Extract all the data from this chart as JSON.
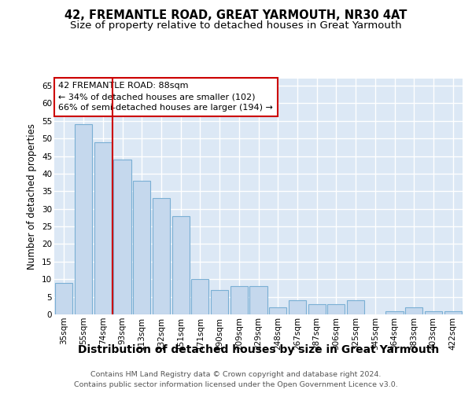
{
  "title": "42, FREMANTLE ROAD, GREAT YARMOUTH, NR30 4AT",
  "subtitle": "Size of property relative to detached houses in Great Yarmouth",
  "xlabel": "Distribution of detached houses by size in Great Yarmouth",
  "ylabel": "Number of detached properties",
  "categories": [
    "35sqm",
    "55sqm",
    "74sqm",
    "93sqm",
    "113sqm",
    "132sqm",
    "151sqm",
    "171sqm",
    "190sqm",
    "209sqm",
    "229sqm",
    "248sqm",
    "267sqm",
    "287sqm",
    "306sqm",
    "325sqm",
    "345sqm",
    "364sqm",
    "383sqm",
    "403sqm",
    "422sqm"
  ],
  "values": [
    9,
    54,
    49,
    44,
    38,
    33,
    28,
    10,
    7,
    8,
    8,
    2,
    4,
    3,
    3,
    4,
    0,
    1,
    2,
    1,
    1
  ],
  "bar_color": "#c5d8ed",
  "bar_edge_color": "#7aafd4",
  "vline_x": 2.5,
  "vline_color": "#cc0000",
  "ann_line1": "42 FREMANTLE ROAD: 88sqm",
  "ann_line2": "← 34% of detached houses are smaller (102)",
  "ann_line3": "66% of semi-detached houses are larger (194) →",
  "ann_edge_color": "#cc0000",
  "ylim": [
    0,
    67
  ],
  "yticks": [
    0,
    5,
    10,
    15,
    20,
    25,
    30,
    35,
    40,
    45,
    50,
    55,
    60,
    65
  ],
  "plot_bg_color": "#dce8f5",
  "fig_bg_color": "#ffffff",
  "grid_color": "#ffffff",
  "footer_line1": "Contains HM Land Registry data © Crown copyright and database right 2024.",
  "footer_line2": "Contains public sector information licensed under the Open Government Licence v3.0.",
  "title_fontsize": 10.5,
  "subtitle_fontsize": 9.5,
  "xlabel_fontsize": 10,
  "ylabel_fontsize": 8.5,
  "tick_fontsize": 7.5,
  "ann_fontsize": 8,
  "footer_fontsize": 6.8
}
